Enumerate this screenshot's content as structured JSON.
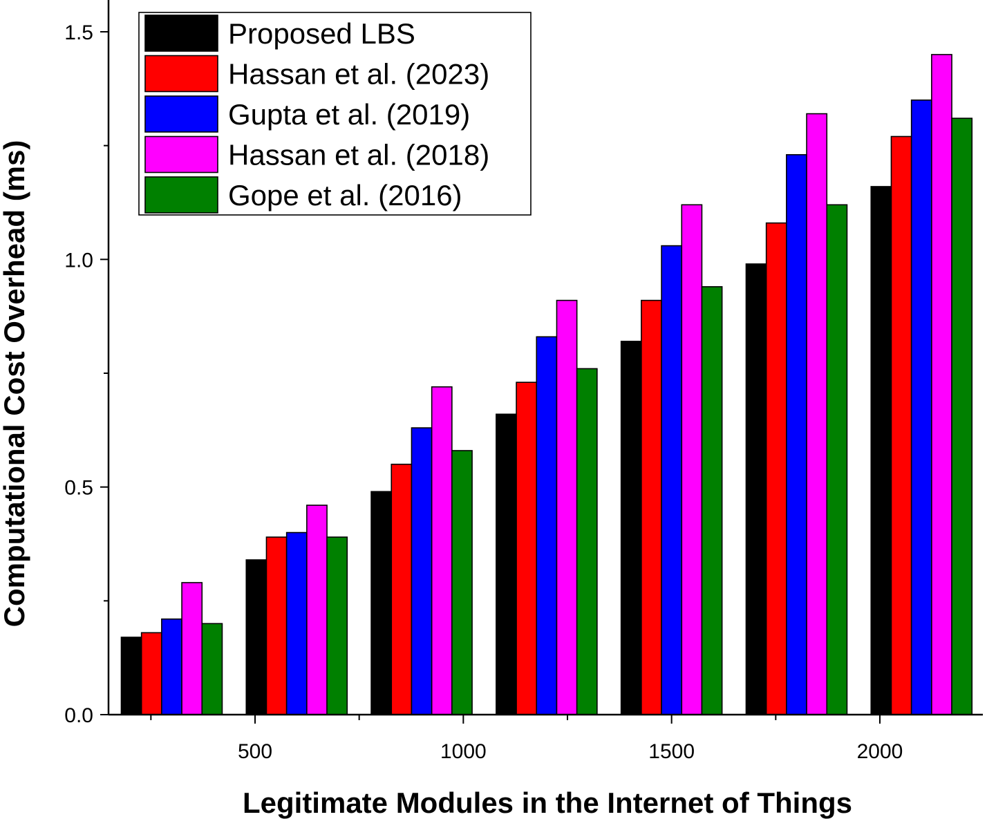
{
  "chart_data": {
    "type": "bar",
    "title": "",
    "xlabel": "Legitimate Modules in the Internet of Things",
    "ylabel": "Computational Cost Overhead (ms)",
    "ylim": [
      0,
      1.5
    ],
    "y_ticks": [
      "0.0",
      "0.5",
      "1.0",
      "1.5"
    ],
    "x_ticks": [
      "500",
      "1000",
      "1500",
      "2000"
    ],
    "categories": [
      "300",
      "600",
      "900",
      "1200",
      "1500",
      "1800",
      "2100"
    ],
    "legend_position": "top-left",
    "grid": false,
    "series": [
      {
        "name": "Proposed LBS",
        "color": "#000000",
        "values": [
          0.17,
          0.34,
          0.49,
          0.66,
          0.82,
          0.99,
          1.16
        ]
      },
      {
        "name": "Hassan et al. (2023)",
        "color": "#ff0000",
        "values": [
          0.18,
          0.39,
          0.55,
          0.73,
          0.91,
          1.08,
          1.27
        ]
      },
      {
        "name": "Gupta et al. (2019)",
        "color": "#0000ff",
        "values": [
          0.21,
          0.4,
          0.63,
          0.83,
          1.03,
          1.23,
          1.35
        ]
      },
      {
        "name": "Hassan et al. (2018)",
        "color": "#ff00ff",
        "values": [
          0.29,
          0.46,
          0.72,
          0.91,
          1.12,
          1.32,
          1.45
        ]
      },
      {
        "name": "Gope et al. (2016)",
        "color": "#008000",
        "values": [
          0.2,
          0.39,
          0.58,
          0.76,
          0.94,
          1.12,
          1.31
        ]
      }
    ]
  }
}
